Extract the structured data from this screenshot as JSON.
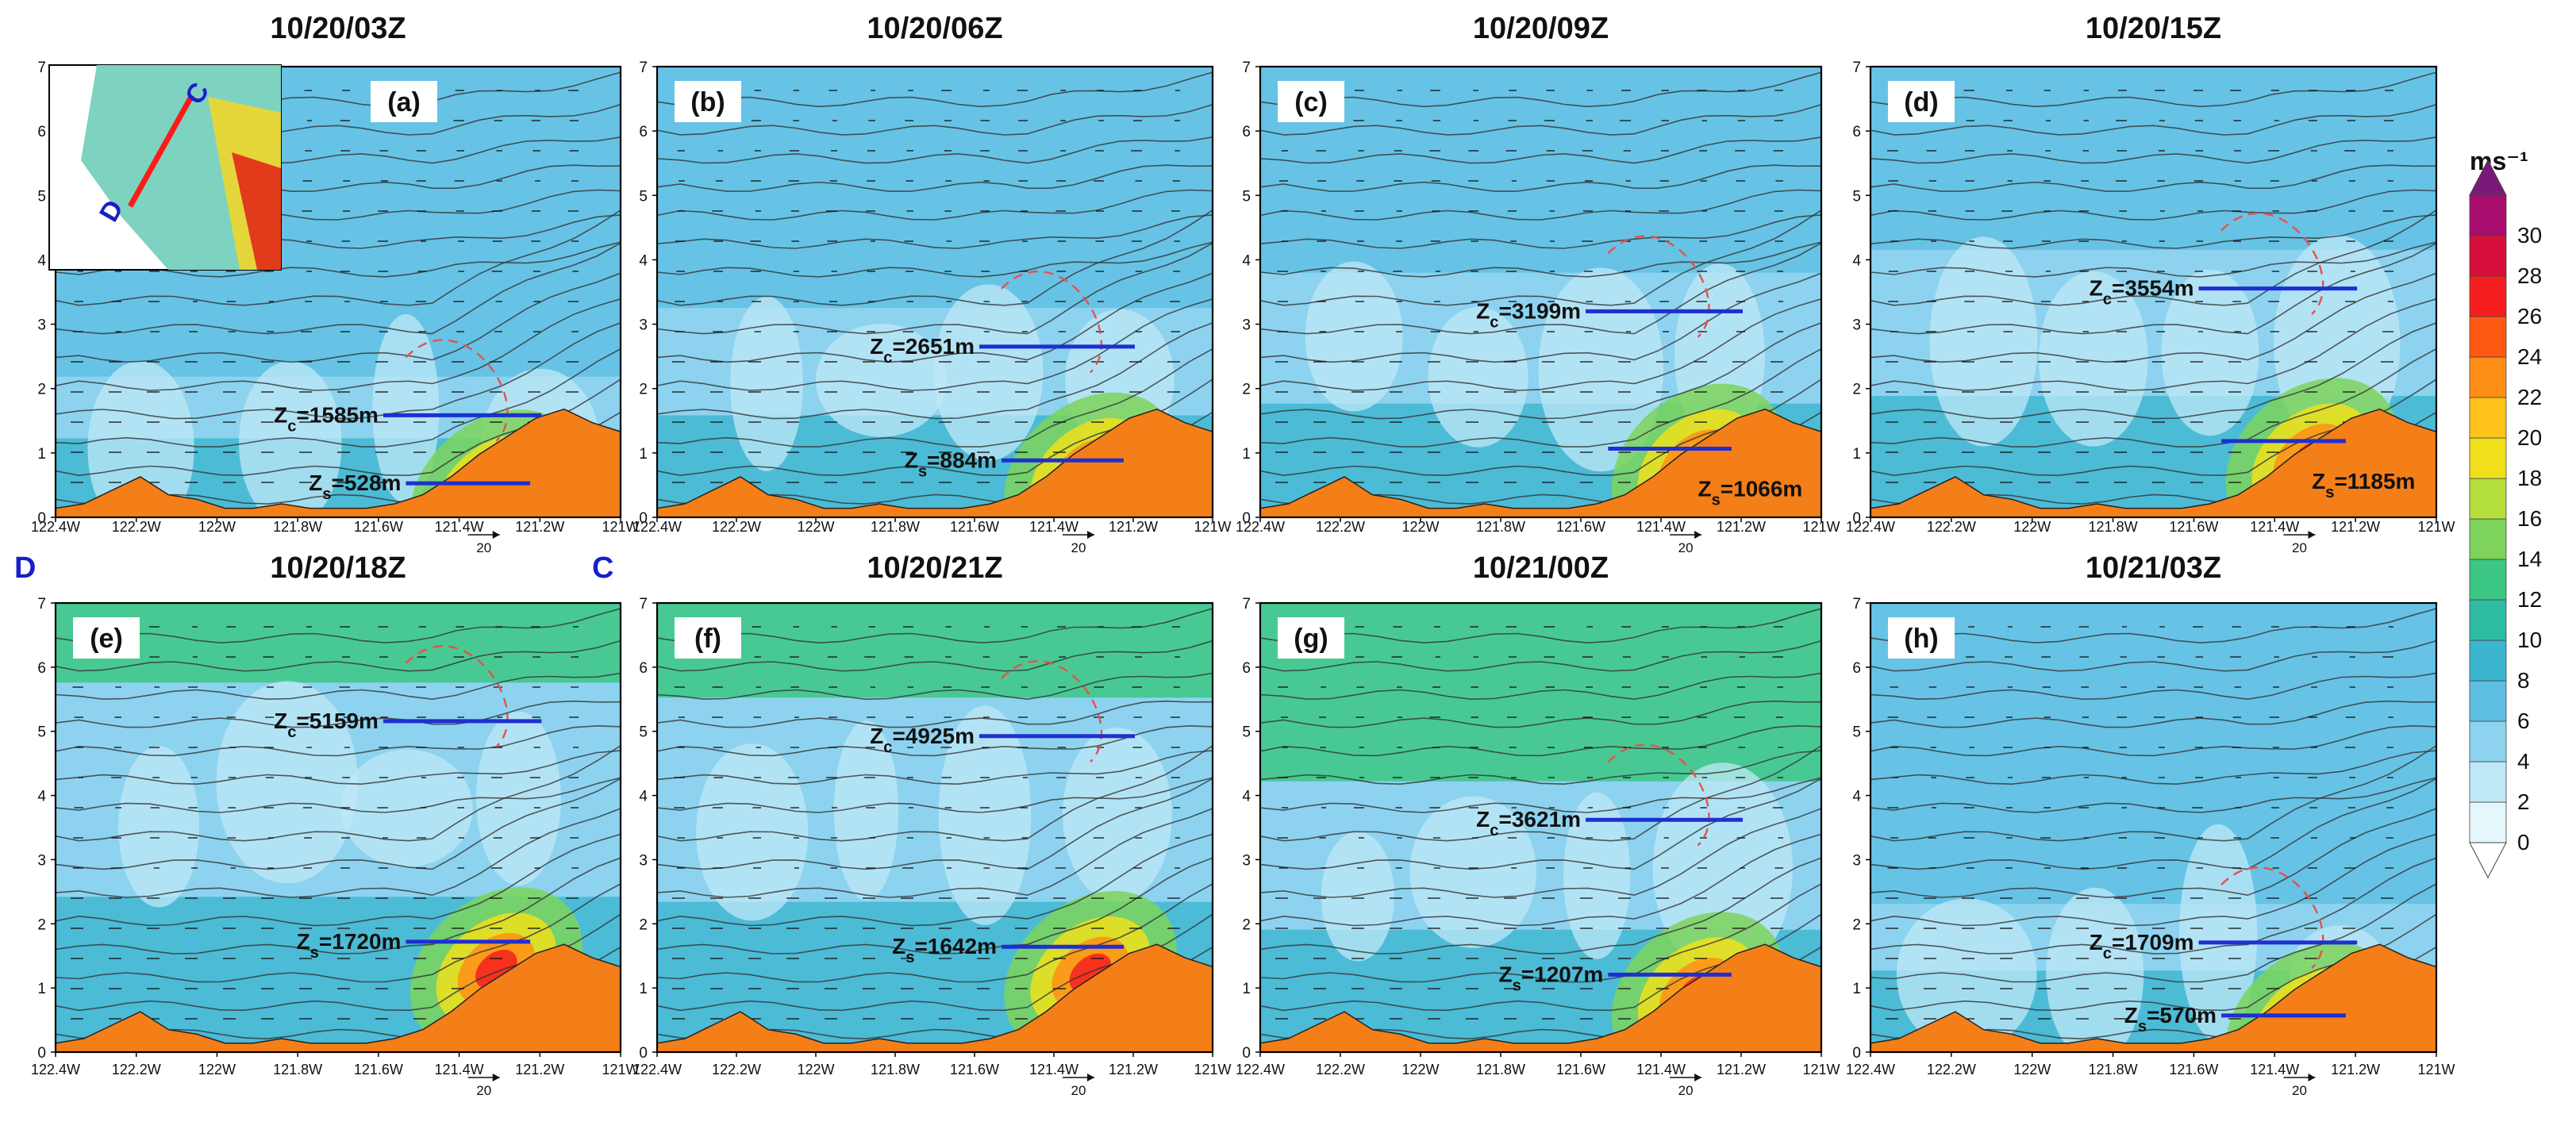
{
  "colors": {
    "zc_line": "#1f2fd0",
    "zs_line": "#1f2fd0",
    "terrain": "#f47e18",
    "dashed": "#e8504a",
    "section_line": "#ff1a1a",
    "section_label": "#1a1fc8"
  },
  "chart_data": {
    "type": "heatmap",
    "panels": [
      {
        "title": "10/20/03Z",
        "tag": "(a)",
        "zc": "Zc=1585m",
        "zs": "Zs=528m",
        "zc_km": 1.585,
        "zs_km": 0.528,
        "has_inset": true
      },
      {
        "title": "10/20/06Z",
        "tag": "(b)",
        "zc": "Zc=2651m",
        "zs": "Zs=884m",
        "zc_km": 2.651,
        "zs_km": 0.884
      },
      {
        "title": "10/20/09Z",
        "tag": "(c)",
        "zc": "Zc=3199m",
        "zs": "Zs=1066m",
        "zc_km": 3.199,
        "zs_km": 1.066
      },
      {
        "title": "10/20/15Z",
        "tag": "(d)",
        "zc": "Zc=3554m",
        "zs": "Zs=1185m",
        "zc_km": 3.554,
        "zs_km": 1.185
      },
      {
        "title": "10/20/18Z",
        "tag": "(e)",
        "zc": "Zc=5159m",
        "zs": "Zs=1720m",
        "zc_km": 5.159,
        "zs_km": 1.72
      },
      {
        "title": "10/20/21Z",
        "tag": "(f)",
        "zc": "Zc=4925m",
        "zs": "Zs=1642m",
        "zc_km": 4.925,
        "zs_km": 1.642
      },
      {
        "title": "10/21/00Z",
        "tag": "(g)",
        "zc": "Zc=3621m",
        "zs": "Zs=1207m",
        "zc_km": 3.621,
        "zs_km": 1.207
      },
      {
        "title": "10/21/03Z",
        "tag": "(h)",
        "zc": "Zc=1709m",
        "zs": "Zs=570m",
        "zc_km": 1.709,
        "zs_km": 0.57
      }
    ],
    "x_ticks": [
      "122.4W",
      "122.2W",
      "122W",
      "121.8W",
      "121.6W",
      "121.4W",
      "121.2W",
      "121W"
    ],
    "y_ticks": [
      "0",
      "1",
      "2",
      "3",
      "4",
      "5",
      "6",
      "7"
    ],
    "y_range_km": [
      0,
      7
    ],
    "vector_ref": "20",
    "section_ends": {
      "left": "D",
      "right": "C"
    },
    "colorbar": {
      "unit": "ms⁻¹",
      "ticks": [
        "0",
        "2",
        "4",
        "6",
        "8",
        "10",
        "12",
        "14",
        "16",
        "18",
        "20",
        "22",
        "24",
        "26",
        "28",
        "30"
      ],
      "colors": [
        "#e6f7fc",
        "#bfe8f7",
        "#8dd3f0",
        "#5fbfe3",
        "#3cb5cf",
        "#2fbca4",
        "#3cc784",
        "#7dd35c",
        "#b4de3c",
        "#f0e01c",
        "#ffc21a",
        "#ff8f16",
        "#ff5a14",
        "#f51e1e",
        "#d6103a",
        "#a80e6e"
      ]
    },
    "inset": {
      "labels": [
        "C",
        "D"
      ]
    }
  }
}
